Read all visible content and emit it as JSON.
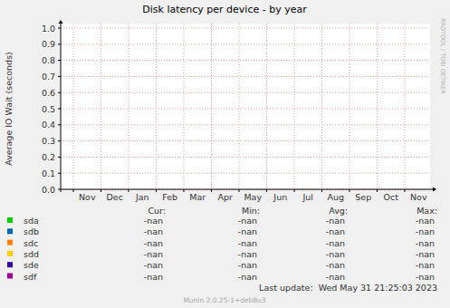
{
  "chart_data": {
    "type": "line",
    "title": "Disk latency per device - by year",
    "y_label": "Average IO Wait (seconds)",
    "categories": [
      "Nov",
      "Dec",
      "Jan",
      "Feb",
      "Mar",
      "Apr",
      "May",
      "Jun",
      "Jul",
      "Aug",
      "Sep",
      "Oct",
      "Nov"
    ],
    "series": [
      {
        "name": "sda",
        "color": "#00cc00",
        "values": [
          null,
          null,
          null,
          null,
          null,
          null,
          null,
          null,
          null,
          null,
          null,
          null,
          null
        ],
        "stats": [
          "-nan",
          "-nan",
          "-nan",
          "-nan"
        ]
      },
      {
        "name": "sdb",
        "color": "#0066b3",
        "values": [
          null,
          null,
          null,
          null,
          null,
          null,
          null,
          null,
          null,
          null,
          null,
          null,
          null
        ],
        "stats": [
          "-nan",
          "-nan",
          "-nan",
          "-nan"
        ]
      },
      {
        "name": "sdc",
        "color": "#ff8000",
        "values": [
          null,
          null,
          null,
          null,
          null,
          null,
          null,
          null,
          null,
          null,
          null,
          null,
          null
        ],
        "stats": [
          "-nan",
          "-nan",
          "-nan",
          "-nan"
        ]
      },
      {
        "name": "sdd",
        "color": "#ffcc00",
        "values": [
          null,
          null,
          null,
          null,
          null,
          null,
          null,
          null,
          null,
          null,
          null,
          null,
          null
        ],
        "stats": [
          "-nan",
          "-nan",
          "-nan",
          "-nan"
        ]
      },
      {
        "name": "sde",
        "color": "#330099",
        "values": [
          null,
          null,
          null,
          null,
          null,
          null,
          null,
          null,
          null,
          null,
          null,
          null,
          null
        ],
        "stats": [
          "-nan",
          "-nan",
          "-nan",
          "-nan"
        ]
      },
      {
        "name": "sdf",
        "color": "#990099",
        "values": [
          null,
          null,
          null,
          null,
          null,
          null,
          null,
          null,
          null,
          null,
          null,
          null,
          null
        ],
        "stats": [
          "-nan",
          "-nan",
          "-nan",
          "-nan"
        ]
      }
    ],
    "stats_labels": [
      "Cur:",
      "Min:",
      "Avg:",
      "Max:"
    ],
    "ylim": [
      0,
      1
    ],
    "yticks": [
      {
        "value": 0,
        "label": "0.0"
      },
      0.1,
      0.2,
      0.3,
      0.4,
      0.5,
      0.6,
      0.7,
      0.8,
      0.9,
      {
        "value": 1,
        "label": "1.0"
      }
    ],
    "grid": true,
    "legend": "bottom",
    "side_text": "RRDTOOL / TOBI OETIKER",
    "last_update": "Last update:  Wed May 31 21:25:03 2023",
    "footer": "Munin 2.0.25-1+deb8u3"
  }
}
